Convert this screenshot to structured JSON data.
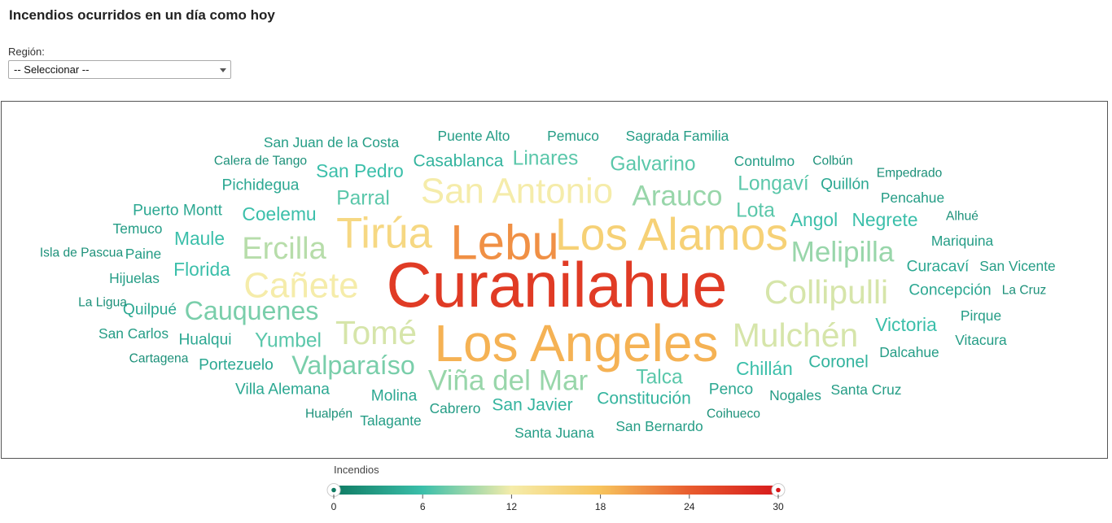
{
  "title": "Incendios ocurridos en un día como hoy",
  "region_filter": {
    "label": "Región:",
    "selected": "-- Seleccionar --"
  },
  "chart_data": {
    "type": "wordcloud",
    "legend": {
      "title": "Incendios",
      "min": 0,
      "max": 30,
      "ticks": [
        "0",
        "6",
        "12",
        "18",
        "24",
        "30"
      ],
      "colors": [
        "#0e7a62",
        "#3bbfaa",
        "#f5ecaa",
        "#f7c35c",
        "#e85c2e",
        "#d7191c"
      ]
    },
    "words": [
      {
        "text": "Curanilahue",
        "value": 27
      },
      {
        "text": "Lebu",
        "value": 21
      },
      {
        "text": "Los Angeles",
        "value": 19
      },
      {
        "text": "Los Alamos",
        "value": 16
      },
      {
        "text": "Tirúa",
        "value": 15
      },
      {
        "text": "San Antonio",
        "value": 12
      },
      {
        "text": "Cañete",
        "value": 12
      },
      {
        "text": "Tomé",
        "value": 11
      },
      {
        "text": "Collipulli",
        "value": 11
      },
      {
        "text": "Mulchén",
        "value": 11
      },
      {
        "text": "Ercilla",
        "value": 10
      },
      {
        "text": "Arauco",
        "value": 9
      },
      {
        "text": "Viña del Mar",
        "value": 9
      },
      {
        "text": "Melipilla",
        "value": 9
      },
      {
        "text": "Cauquenes",
        "value": 8
      },
      {
        "text": "Valparaíso",
        "value": 8
      },
      {
        "text": "Parral",
        "value": 7
      },
      {
        "text": "Linares",
        "value": 7
      },
      {
        "text": "Galvarino",
        "value": 7
      },
      {
        "text": "Longaví",
        "value": 7
      },
      {
        "text": "Lota",
        "value": 7
      },
      {
        "text": "Angol",
        "value": 6
      },
      {
        "text": "Negrete",
        "value": 6
      },
      {
        "text": "Yumbel",
        "value": 7
      },
      {
        "text": "Talca",
        "value": 7
      },
      {
        "text": "Coelemu",
        "value": 6
      },
      {
        "text": "Maule",
        "value": 6
      },
      {
        "text": "Florida",
        "value": 6
      },
      {
        "text": "San Pedro",
        "value": 6
      },
      {
        "text": "Victoria",
        "value": 6
      },
      {
        "text": "Chillán",
        "value": 6
      },
      {
        "text": "Coronel",
        "value": 5
      },
      {
        "text": "Constitución",
        "value": 5
      },
      {
        "text": "San Javier",
        "value": 5
      },
      {
        "text": "Casablanca",
        "value": 5
      },
      {
        "text": "Pichidegua",
        "value": 4
      },
      {
        "text": "Quilpué",
        "value": 4
      },
      {
        "text": "Villa Alemana",
        "value": 4
      },
      {
        "text": "Molina",
        "value": 4
      },
      {
        "text": "Portezuelo",
        "value": 4
      },
      {
        "text": "Hualqui",
        "value": 4
      },
      {
        "text": "Puerto Montt",
        "value": 4
      },
      {
        "text": "Quillón",
        "value": 4
      },
      {
        "text": "Curacaví",
        "value": 4
      },
      {
        "text": "Concepción",
        "value": 4
      },
      {
        "text": "Penco",
        "value": 4
      },
      {
        "text": "Contulmo",
        "value": 3
      },
      {
        "text": "San Juan de la Costa",
        "value": 3
      },
      {
        "text": "Puente Alto",
        "value": 3
      },
      {
        "text": "Pemuco",
        "value": 3
      },
      {
        "text": "Sagrada Familia",
        "value": 3
      },
      {
        "text": "Temuco",
        "value": 3
      },
      {
        "text": "Paine",
        "value": 3
      },
      {
        "text": "Hijuelas",
        "value": 3
      },
      {
        "text": "San Carlos",
        "value": 3
      },
      {
        "text": "Pencahue",
        "value": 3
      },
      {
        "text": "Mariquina",
        "value": 3
      },
      {
        "text": "San Vicente",
        "value": 3
      },
      {
        "text": "Pirque",
        "value": 3
      },
      {
        "text": "Vitacura",
        "value": 3
      },
      {
        "text": "Dalcahue",
        "value": 3
      },
      {
        "text": "Nogales",
        "value": 3
      },
      {
        "text": "Santa Cruz",
        "value": 3
      },
      {
        "text": "Talagante",
        "value": 3
      },
      {
        "text": "Cabrero",
        "value": 3
      },
      {
        "text": "Santa Juana",
        "value": 3
      },
      {
        "text": "San Bernardo",
        "value": 3
      },
      {
        "text": "Calera de Tango",
        "value": 2
      },
      {
        "text": "Colbún",
        "value": 2
      },
      {
        "text": "Empedrado",
        "value": 2
      },
      {
        "text": "Alhué",
        "value": 2
      },
      {
        "text": "Isla de Pascua",
        "value": 2
      },
      {
        "text": "La Ligua",
        "value": 2
      },
      {
        "text": "Cartagena",
        "value": 2
      },
      {
        "text": "La Cruz",
        "value": 2
      },
      {
        "text": "Hualpén",
        "value": 2
      },
      {
        "text": "Coihueco",
        "value": 2
      }
    ]
  }
}
